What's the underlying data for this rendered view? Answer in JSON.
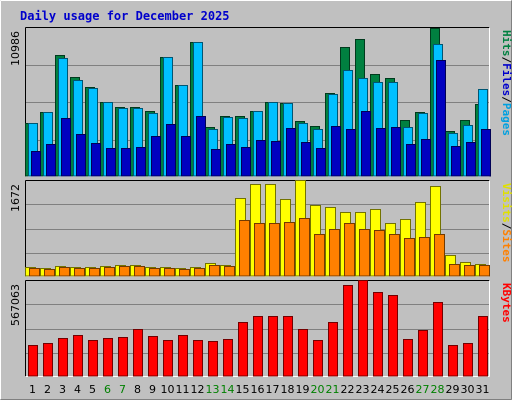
{
  "chart_data": {
    "type": "bar",
    "title": "Daily usage for December 2025",
    "categories": [
      "1",
      "2",
      "3",
      "4",
      "5",
      "6",
      "7",
      "8",
      "9",
      "10",
      "11",
      "12",
      "13",
      "14",
      "15",
      "16",
      "17",
      "18",
      "19",
      "20",
      "21",
      "22",
      "23",
      "24",
      "25",
      "26",
      "27",
      "28",
      "29",
      "30",
      "31"
    ],
    "weekend_days": [
      "6",
      "7",
      "13",
      "14",
      "20",
      "21",
      "27",
      "28"
    ],
    "colors": {
      "frame_bg": "#c0c0c0",
      "plot_bg": "#c0c0c0",
      "grid": "#808080",
      "title": "#0000cc",
      "weekday_tick": "#000000",
      "weekend_tick": "#008000",
      "hits": "#008040",
      "files": "#00c0ff",
      "pages": "#0000c0",
      "visits": "#ffff00",
      "sites": "#ff8000",
      "kbytes": "#ff0000"
    },
    "panels": [
      {
        "ylabel": "10986",
        "ylim": [
          0,
          11960
        ],
        "legend": [
          {
            "name": "Pages",
            "color": "#00a0e0"
          },
          {
            "name": "Files",
            "color": "#0000cc"
          },
          {
            "name": "Hits",
            "color": "#008040"
          }
        ],
        "series": [
          {
            "name": "Hits",
            "color": "#008040",
            "values": [
              4310,
              5150,
              9700,
              7950,
              7150,
              5950,
              5600,
              5600,
              5250,
              9550,
              7300,
              10750,
              4010,
              4860,
              4900,
              5300,
              5950,
              5930,
              4500,
              4100,
              6700,
              10350,
              11040,
              8220,
              7900,
              4560,
              5150,
              11900,
              3680,
              4530,
              5810
            ]
          },
          {
            "name": "Files",
            "color": "#00c0ff",
            "values": [
              4310,
              5150,
              9450,
              7750,
              7100,
              6000,
              5470,
              5480,
              5130,
              9570,
              7300,
              10750,
              3840,
              4800,
              4680,
              5300,
              5950,
              5930,
              4310,
              3840,
              6580,
              8560,
              7860,
              7560,
              7560,
              4010,
              5070,
              10600,
              3500,
              4150,
              7050
            ]
          },
          {
            "name": "Pages",
            "color": "#0000c0",
            "values": [
              2100,
              2600,
              4700,
              3400,
              2700,
              2350,
              2300,
              2360,
              3300,
              4200,
              3300,
              4900,
              2230,
              2650,
              2400,
              2950,
              2900,
              3900,
              2780,
              2280,
              4100,
              3800,
              5300,
              3900,
              4000,
              2600,
              3000,
              9300,
              2500,
              2800,
              3850
            ]
          }
        ]
      },
      {
        "ylabel": "1672",
        "ylim": [
          0,
          2080
        ],
        "legend": [
          {
            "name": "Sites",
            "color": "#ff8000"
          },
          {
            "name": "Visits",
            "color": "#e0e000"
          }
        ],
        "series": [
          {
            "name": "Visits",
            "color": "#ffff00",
            "values": [
              209,
              186,
              233,
              209,
              209,
              233,
              256,
              256,
              209,
              209,
              186,
              209,
              302,
              256,
              1697,
              2000,
              2000,
              1675,
              2070,
              1535,
              1510,
              1395,
              1395,
              1465,
              1160,
              1250,
              1605,
              1945,
              465,
              324,
              279
            ]
          },
          {
            "name": "Sites",
            "color": "#ff8000",
            "values": [
              186,
              163,
              209,
              186,
              186,
              209,
              233,
              233,
              186,
              186,
              163,
              186,
              256,
              233,
              1225,
              1160,
              1160,
              1185,
              1255,
              920,
              1020,
              1160,
              1020,
              1000,
              930,
              840,
              860,
              930,
              279,
              256,
              256
            ]
          }
        ]
      },
      {
        "ylabel": "567063",
        "ylim": [
          0,
          648000
        ],
        "legend": [
          {
            "name": "KBytes",
            "color": "#ff0000"
          }
        ],
        "series": [
          {
            "name": "KBytes",
            "color": "#ff0000",
            "values": [
              213000,
              225000,
              260000,
              283000,
              248000,
              260000,
              265000,
              323000,
              272000,
              248000,
              283000,
              248000,
              241000,
              255000,
              365000,
              405000,
              405000,
              410000,
              318000,
              248000,
              370000,
              615000,
              648000,
              565000,
              545000,
              255000,
              315000,
              498000,
              213000,
              225000,
              410000
            ]
          }
        ]
      }
    ]
  }
}
